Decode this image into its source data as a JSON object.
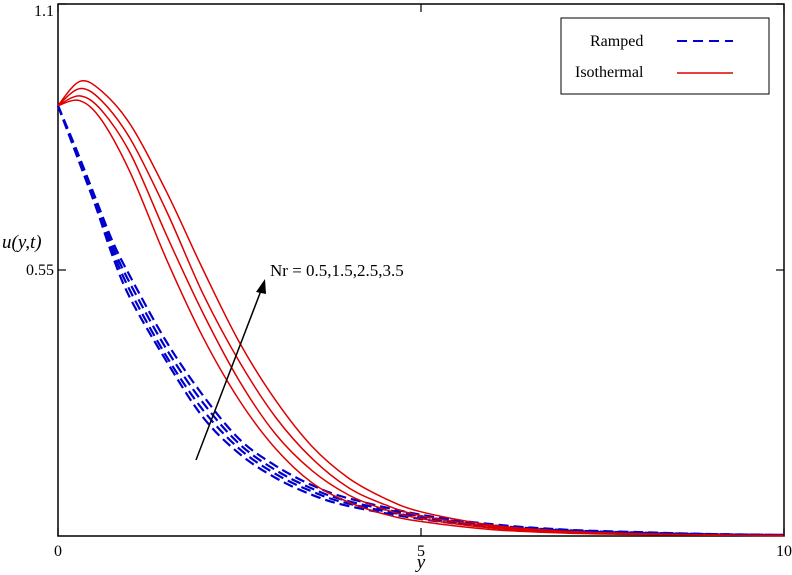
{
  "chart_data": {
    "type": "line",
    "xlabel": "y",
    "ylabel": "u(y,t)",
    "xlim": [
      0,
      10
    ],
    "ylim": [
      0,
      1.1
    ],
    "x_ticks": [
      "0",
      "5",
      "10"
    ],
    "y_ticks": [
      "1.1",
      "0.55"
    ],
    "grid": false,
    "legend_position": "top-right",
    "legend": [
      {
        "label": "Ramped",
        "style": "dashed",
        "color": "#0000cc"
      },
      {
        "label": "Isothermal",
        "style": "solid",
        "color": "#dd0000"
      }
    ],
    "annotation": "Nr = 0.5,1.5,2.5,3.5",
    "series": [
      {
        "group": "Ramped",
        "Nr": 0.5,
        "color": "#0000cc",
        "style": "dashed",
        "x": [
          0,
          0.25,
          0.5,
          0.75,
          1,
          1.5,
          2,
          2.5,
          3,
          3.5,
          4,
          5,
          6,
          7,
          8,
          9,
          10
        ],
        "y": [
          0.89,
          0.79,
          0.69,
          0.58,
          0.49,
          0.36,
          0.245,
          0.17,
          0.12,
          0.085,
          0.062,
          0.035,
          0.018,
          0.01,
          0.006,
          0.003,
          0.002
        ]
      },
      {
        "group": "Ramped",
        "Nr": 1.5,
        "color": "#0000cc",
        "style": "dashed",
        "x": [
          0,
          0.25,
          0.5,
          0.75,
          1,
          1.5,
          2,
          2.5,
          3,
          3.5,
          4,
          5,
          6,
          7,
          8,
          9,
          10
        ],
        "y": [
          0.89,
          0.79,
          0.69,
          0.59,
          0.505,
          0.37,
          0.26,
          0.18,
          0.128,
          0.092,
          0.067,
          0.038,
          0.02,
          0.011,
          0.006,
          0.003,
          0.002
        ]
      },
      {
        "group": "Ramped",
        "Nr": 2.5,
        "color": "#0000cc",
        "style": "dashed",
        "x": [
          0,
          0.25,
          0.5,
          0.75,
          1,
          1.5,
          2,
          2.5,
          3,
          3.5,
          4,
          5,
          6,
          7,
          8,
          9,
          10
        ],
        "y": [
          0.89,
          0.795,
          0.7,
          0.6,
          0.52,
          0.385,
          0.275,
          0.19,
          0.136,
          0.098,
          0.072,
          0.041,
          0.022,
          0.012,
          0.007,
          0.004,
          0.002
        ]
      },
      {
        "group": "Ramped",
        "Nr": 3.5,
        "color": "#0000cc",
        "style": "dashed",
        "x": [
          0,
          0.25,
          0.5,
          0.75,
          1,
          1.5,
          2,
          2.5,
          3,
          3.5,
          4,
          5,
          6,
          7,
          8,
          9,
          10
        ],
        "y": [
          0.89,
          0.8,
          0.705,
          0.61,
          0.535,
          0.4,
          0.29,
          0.2,
          0.145,
          0.105,
          0.078,
          0.044,
          0.024,
          0.013,
          0.008,
          0.004,
          0.002
        ]
      },
      {
        "group": "Isothermal",
        "Nr": 0.5,
        "color": "#dd0000",
        "style": "solid",
        "x": [
          0,
          0.3,
          0.6,
          1,
          1.5,
          2,
          2.5,
          3,
          3.5,
          4,
          4.5,
          5,
          6,
          7,
          8,
          9,
          10
        ],
        "y": [
          0.89,
          0.9,
          0.86,
          0.75,
          0.57,
          0.41,
          0.28,
          0.18,
          0.11,
          0.07,
          0.045,
          0.03,
          0.013,
          0.006,
          0.003,
          0.002,
          0.001
        ]
      },
      {
        "group": "Isothermal",
        "Nr": 1.5,
        "color": "#dd0000",
        "style": "solid",
        "x": [
          0,
          0.3,
          0.6,
          1,
          1.5,
          2,
          2.5,
          3,
          3.5,
          4,
          4.5,
          5,
          6,
          7,
          8,
          9,
          10
        ],
        "y": [
          0.89,
          0.91,
          0.88,
          0.79,
          0.62,
          0.46,
          0.32,
          0.21,
          0.135,
          0.085,
          0.055,
          0.036,
          0.016,
          0.007,
          0.004,
          0.002,
          0.001
        ]
      },
      {
        "group": "Isothermal",
        "Nr": 2.5,
        "color": "#dd0000",
        "style": "solid",
        "x": [
          0,
          0.3,
          0.6,
          1,
          1.5,
          2,
          2.5,
          3,
          3.5,
          4,
          4.5,
          5,
          6,
          7,
          8,
          9,
          10
        ],
        "y": [
          0.89,
          0.925,
          0.9,
          0.82,
          0.67,
          0.5,
          0.36,
          0.245,
          0.16,
          0.1,
          0.065,
          0.042,
          0.019,
          0.009,
          0.004,
          0.002,
          0.001
        ]
      },
      {
        "group": "Isothermal",
        "Nr": 3.5,
        "color": "#dd0000",
        "style": "solid",
        "x": [
          0,
          0.3,
          0.6,
          1,
          1.5,
          2,
          2.5,
          3,
          3.5,
          4,
          4.5,
          5,
          6,
          7,
          8,
          9,
          10
        ],
        "y": [
          0.89,
          0.94,
          0.92,
          0.85,
          0.71,
          0.55,
          0.4,
          0.28,
          0.185,
          0.12,
          0.078,
          0.05,
          0.022,
          0.01,
          0.005,
          0.002,
          0.001
        ]
      }
    ]
  }
}
